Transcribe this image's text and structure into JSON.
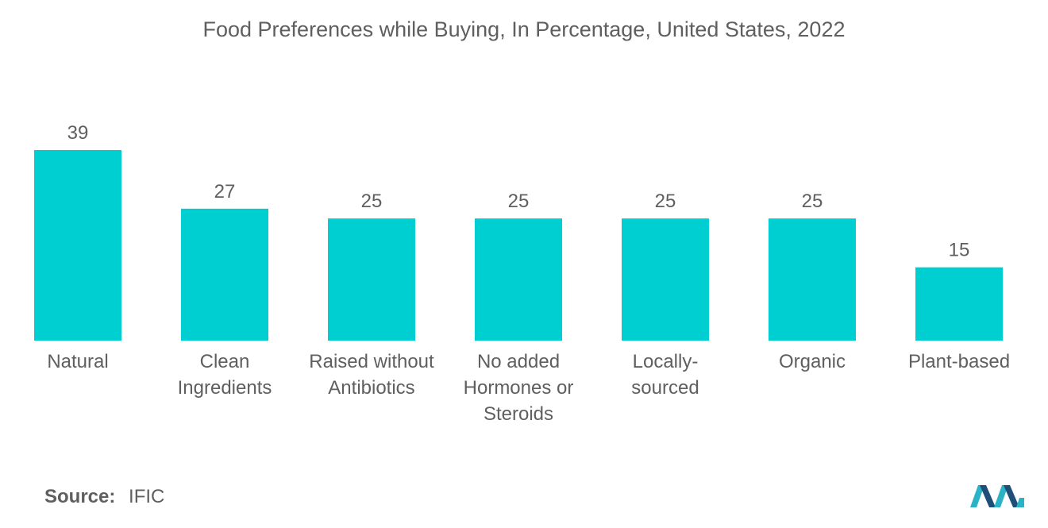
{
  "chart_data": {
    "type": "bar",
    "title": "Food Preferences while Buying, In Percentage, United States, 2022",
    "categories": [
      [
        "Natural"
      ],
      [
        "Clean",
        "Ingredients"
      ],
      [
        "Raised without",
        "Antibiotics"
      ],
      [
        "No added",
        "Hormones or",
        "Steroids"
      ],
      [
        "Locally-",
        "sourced"
      ],
      [
        "Organic"
      ],
      [
        "Plant-based"
      ]
    ],
    "values": [
      39,
      27,
      25,
      25,
      25,
      25,
      15
    ],
    "xlabel": "",
    "ylabel": "",
    "ylim": [
      0,
      39
    ],
    "grid": false,
    "legend": "none",
    "bar_color": "#00cfd1"
  },
  "source": {
    "label": "Source:",
    "value": "IFIC"
  },
  "colors": {
    "text": "#5f5f5f",
    "logo_dark": "#1f4e79",
    "logo_light": "#2ab3c4"
  }
}
